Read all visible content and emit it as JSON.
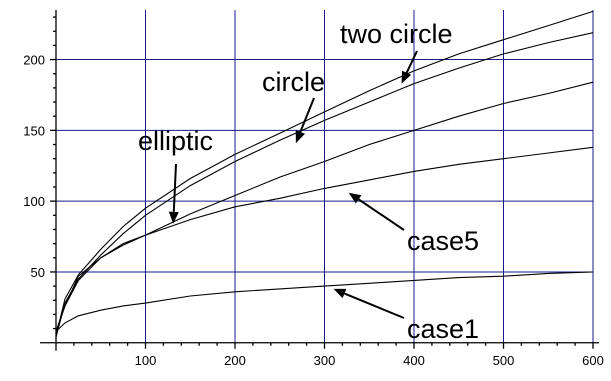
{
  "chart_data": {
    "type": "line",
    "title": "",
    "xlabel": "",
    "ylabel": "",
    "xlim": [
      0,
      600
    ],
    "ylim": [
      -3,
      235
    ],
    "grid": true,
    "x_ticks": [
      100,
      200,
      300,
      400,
      500,
      600
    ],
    "y_ticks": [
      50,
      100,
      150,
      200
    ],
    "x": [
      0,
      10,
      25,
      50,
      75,
      100,
      150,
      200,
      250,
      300,
      350,
      400,
      450,
      500,
      550,
      600
    ],
    "series": [
      {
        "name": "two circle",
        "values": [
          5,
          31,
          48,
          66,
          82,
          95,
          116,
          133,
          148,
          163,
          178,
          192,
          204,
          214,
          224,
          234
        ]
      },
      {
        "name": "circle",
        "values": [
          4,
          28,
          45,
          62,
          77,
          90,
          111,
          128,
          143,
          157,
          170,
          183,
          194,
          204,
          212,
          219
        ]
      },
      {
        "name": "elliptic",
        "values": [
          8,
          26,
          44,
          60,
          70,
          76,
          91,
          104,
          117,
          128,
          140,
          150,
          160,
          169,
          176,
          184
        ]
      },
      {
        "name": "case5",
        "values": [
          8,
          26,
          47,
          60,
          69,
          76,
          87,
          96,
          102,
          109,
          115,
          121,
          126,
          130,
          134,
          138
        ]
      },
      {
        "name": "case1",
        "values": [
          8,
          14,
          19,
          23,
          26,
          28,
          33,
          36,
          38,
          40,
          42,
          44,
          46,
          47,
          49,
          50
        ]
      }
    ],
    "annotations": [
      {
        "text": "two circle",
        "series": "two circle",
        "point_x": 386,
        "point_y": 183
      },
      {
        "text": "circle",
        "series": "circle",
        "point_x": 268,
        "point_y": 141
      },
      {
        "text": "elliptic",
        "series": "elliptic",
        "point_x": 131,
        "point_y": 84
      },
      {
        "text": "case5",
        "series": "case5",
        "point_x": 327,
        "point_y": 106
      },
      {
        "text": "case1",
        "series": "case1",
        "point_x": 310,
        "point_y": 38
      }
    ]
  }
}
